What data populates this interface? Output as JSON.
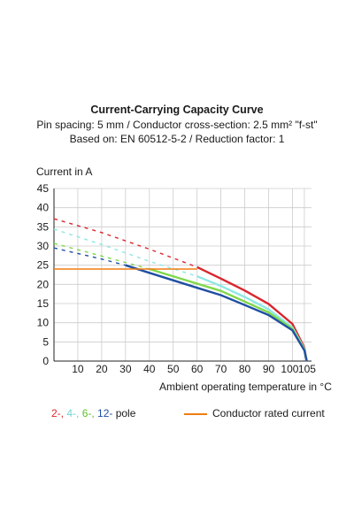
{
  "title": "Current-Carrying Capacity Curve",
  "subtitle_line1": "Pin spacing: 5 mm / Conductor cross-section: 2.5 mm² \"f-st\"",
  "subtitle_line2": "Based on: EN 60512-5-2 / Reduction factor: 1",
  "colors": {
    "pole2": "#d9262e",
    "pole4": "#8fe8e4",
    "pole6": "#7fd84a",
    "pole12": "#1f4fa3",
    "rated": "#f07d12",
    "grid": "#cccccc"
  },
  "legend": {
    "p2": "2-",
    "sep1": ", ",
    "p4": "4-",
    "sep2": ", ",
    "p6": "6-",
    "sep3": ", ",
    "p12": "12-",
    "pole": " pole",
    "rated": "Conductor rated current"
  },
  "chart_data": {
    "type": "line",
    "xlabel": "Ambient operating temperature in °C",
    "ylabel": "Current in A",
    "xlim": [
      0,
      108
    ],
    "ylim": [
      0,
      45
    ],
    "xticks": [
      10,
      20,
      30,
      40,
      50,
      60,
      70,
      80,
      90,
      100,
      105
    ],
    "yticks": [
      0,
      5,
      10,
      15,
      20,
      25,
      30,
      35,
      40,
      45
    ],
    "grid": true,
    "legend_position": "bottom",
    "series": [
      {
        "name": "2-",
        "color_key": "pole2",
        "dashed": [
          [
            0,
            37.1
          ],
          [
            20,
            33.5
          ],
          [
            40,
            29.2
          ],
          [
            60,
            24.5
          ]
        ],
        "solid": [
          [
            60,
            24.5
          ],
          [
            70,
            21.5
          ],
          [
            80,
            18.4
          ],
          [
            90,
            14.9
          ],
          [
            100,
            9.7
          ],
          [
            105,
            3.5
          ],
          [
            106,
            0
          ]
        ]
      },
      {
        "name": "4-",
        "color_key": "pole4",
        "dashed": [
          [
            0,
            34.4
          ],
          [
            20,
            30.4
          ],
          [
            40,
            26.0
          ],
          [
            60,
            22.1
          ]
        ],
        "solid": [
          [
            60,
            22.1
          ],
          [
            70,
            19.6
          ],
          [
            80,
            16.7
          ],
          [
            90,
            13.5
          ],
          [
            100,
            8.8
          ],
          [
            105,
            3.2
          ],
          [
            106,
            0
          ]
        ]
      },
      {
        "name": "6-",
        "color_key": "pole6",
        "dashed": [
          [
            0,
            30.7
          ],
          [
            20,
            27.4
          ],
          [
            40,
            24.0
          ]
        ],
        "solid": [
          [
            40,
            24.0
          ],
          [
            60,
            20.2
          ],
          [
            70,
            18.3
          ],
          [
            80,
            15.5
          ],
          [
            90,
            12.7
          ],
          [
            100,
            8.4
          ],
          [
            105,
            3.0
          ],
          [
            106,
            0
          ]
        ]
      },
      {
        "name": "12-",
        "color_key": "pole12",
        "dashed": [
          [
            0,
            29.5
          ],
          [
            20,
            26.6
          ],
          [
            30,
            25.0
          ]
        ],
        "solid": [
          [
            30,
            25.0
          ],
          [
            40,
            23.0
          ],
          [
            60,
            19.1
          ],
          [
            70,
            17.2
          ],
          [
            80,
            14.6
          ],
          [
            90,
            12.0
          ],
          [
            100,
            8.0
          ],
          [
            105,
            2.8
          ],
          [
            106,
            0
          ]
        ]
      },
      {
        "name": "Conductor rated current",
        "color_key": "rated",
        "solid": [
          [
            0,
            24
          ],
          [
            60,
            24
          ]
        ]
      }
    ]
  }
}
